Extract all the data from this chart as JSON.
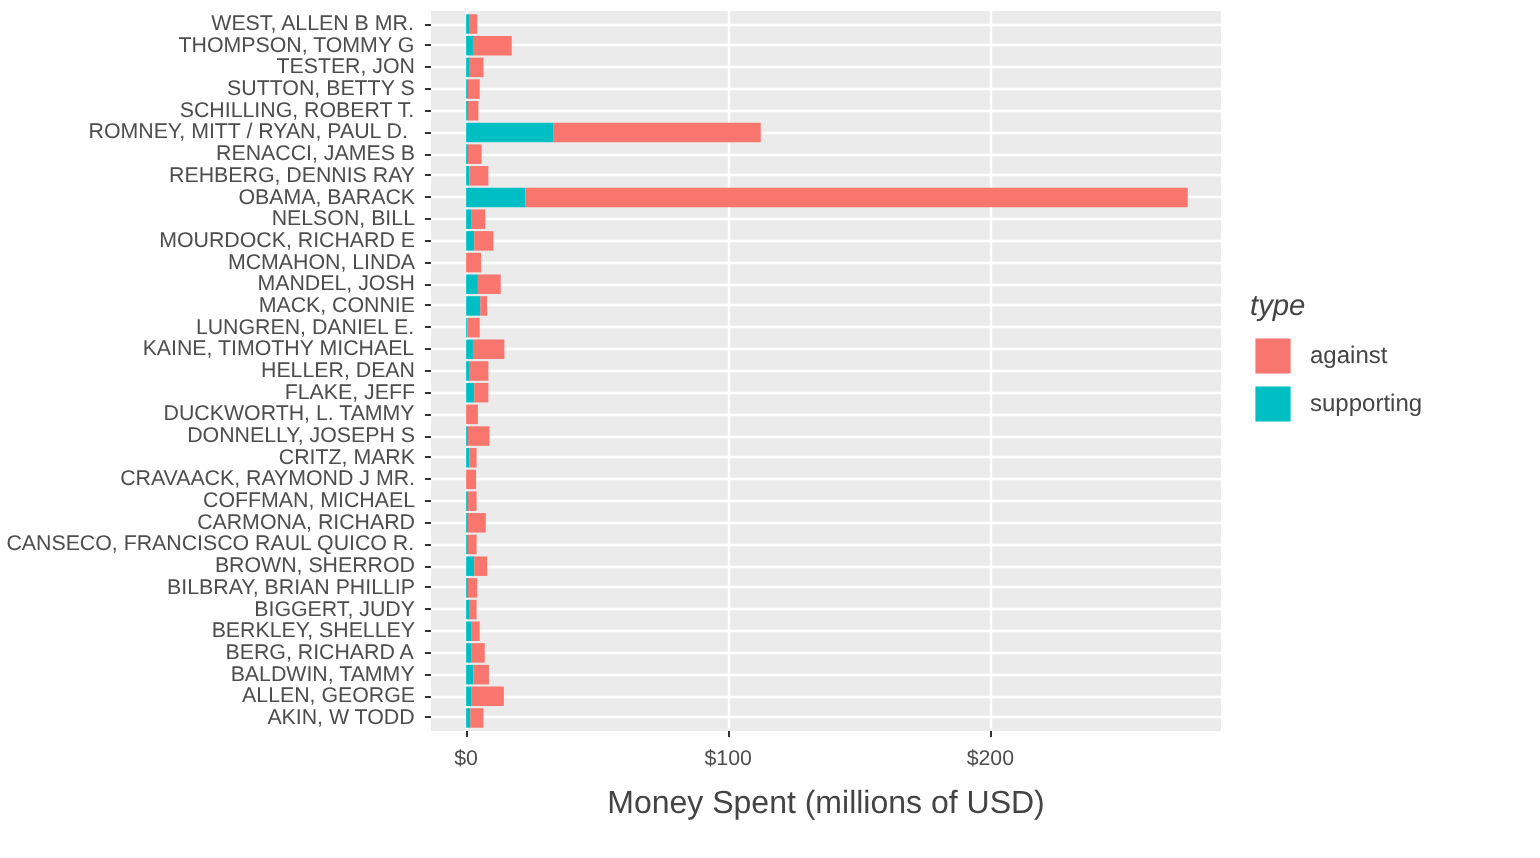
{
  "chart_data": {
    "type": "bar",
    "orientation": "horizontal",
    "stacked": true,
    "xlabel": "Money Spent (millions of USD)",
    "legend_title": "type",
    "legend": "right",
    "grid": true,
    "categories": [
      "WEST, ALLEN B MR.",
      "THOMPSON, TOMMY G",
      "TESTER, JON",
      "SUTTON, BETTY S",
      "SCHILLING, ROBERT T.",
      "ROMNEY, MITT / RYAN, PAUL D. ",
      "RENACCI, JAMES B",
      "REHBERG, DENNIS RAY",
      "OBAMA, BARACK",
      "NELSON, BILL",
      "MOURDOCK, RICHARD E",
      "MCMAHON, LINDA",
      "MANDEL, JOSH",
      "MACK, CONNIE",
      "LUNGREN, DANIEL E.",
      "KAINE, TIMOTHY MICHAEL",
      "HELLER, DEAN",
      "FLAKE, JEFF",
      "DUCKWORTH, L. TAMMY",
      "DONNELLY, JOSEPH S",
      "CRITZ, MARK",
      "CRAVAACK, RAYMOND J MR.",
      "COFFMAN, MICHAEL",
      "CARMONA, RICHARD",
      "CANSECO, FRANCISCO RAUL QUICO R.",
      "BROWN, SHERROD",
      "BILBRAY, BRIAN PHILLIP",
      "BIGGERT, JUDY",
      "BERKLEY, SHELLEY",
      "BERG, RICHARD A",
      "BALDWIN, TAMMY",
      "ALLEN, GEORGE",
      "AKIN, W TODD"
    ],
    "series": [
      {
        "name": "supporting",
        "color": "#00bfc4",
        "values": [
          1.4,
          2.6,
          1.4,
          0.7,
          0.7,
          33.2,
          0.7,
          1.2,
          22.6,
          1.9,
          3.1,
          null,
          4.5,
          5.4,
          0.5,
          2.6,
          1.4,
          3.1,
          null,
          0.7,
          1.2,
          null,
          0.7,
          0.7,
          0.7,
          3.1,
          0.7,
          1.4,
          1.9,
          1.9,
          2.8,
          1.9,
          1.6
        ]
      },
      {
        "name": "against",
        "color": "#f8766d",
        "values": [
          2.8,
          14.8,
          5.2,
          4.5,
          4.0,
          79.2,
          5.2,
          7.3,
          252.7,
          5.4,
          7.3,
          5.7,
          8.7,
          2.6,
          4.7,
          12.0,
          7.1,
          5.4,
          4.5,
          8.2,
          2.8,
          3.8,
          3.3,
          6.8,
          3.3,
          4.9,
          3.5,
          2.6,
          3.3,
          5.2,
          5.9,
          12.5,
          5.0
        ]
      }
    ],
    "xlim": [
      -13.4,
      288
    ],
    "xticks": [
      {
        "value": 0,
        "label": "$0"
      },
      {
        "value": 100,
        "label": "$100"
      },
      {
        "value": 200,
        "label": "$200"
      }
    ]
  }
}
